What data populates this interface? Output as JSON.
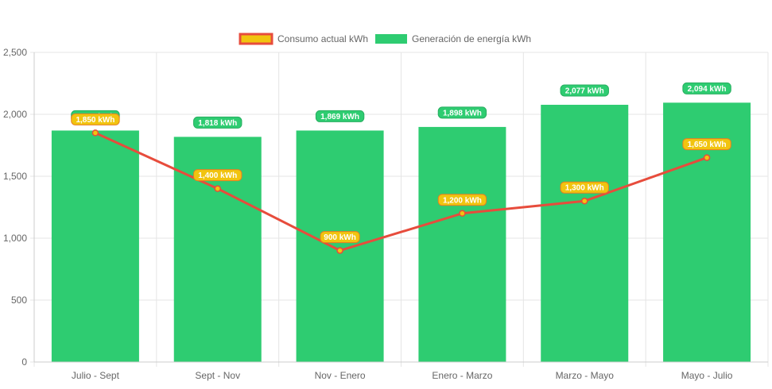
{
  "chart_data": {
    "type": "bar",
    "categories": [
      "Julio - Sept",
      "Sept - Nov",
      "Nov - Enero",
      "Enero - Marzo",
      "Marzo - Mayo",
      "Mayo - Julio"
    ],
    "ylim": [
      0,
      2500
    ],
    "yticks": [
      0,
      500,
      1000,
      1500,
      2000,
      2500
    ],
    "ytick_labels": [
      "0",
      "500",
      "1,000",
      "1,500",
      "2,000",
      "2,500"
    ],
    "grid": true,
    "legend_position": "top",
    "series": [
      {
        "name": "Generación de energía kWh",
        "type": "bar",
        "color": "#2ecc71",
        "values": [
          1869,
          1818,
          1869,
          1898,
          2077,
          2094
        ],
        "labels": [
          "1,869 kWh",
          "1,818 kWh",
          "1,869 kWh",
          "1,898 kWh",
          "2,077 kWh",
          "2,094 kWh"
        ]
      },
      {
        "name": "Consumo actual kWh",
        "type": "line",
        "color": "#e74c3c",
        "fill": "#f1c40f",
        "values": [
          1850,
          1400,
          900,
          1200,
          1300,
          1650
        ],
        "labels": [
          "1,850 kWh",
          "1,400 kWh",
          "900 kWh",
          "1,200 kWh",
          "1,300 kWh",
          "1,650 kWh"
        ]
      }
    ]
  }
}
